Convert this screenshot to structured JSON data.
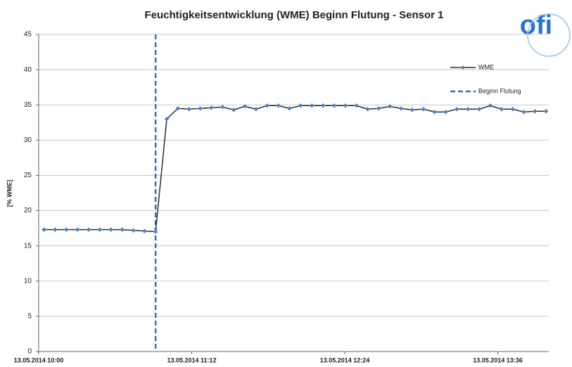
{
  "chart_data": {
    "type": "line",
    "title": "Feuchtigkeitsentwicklung (WME) Beginn Flutung - Sensor 1",
    "y_label": "[% WME]",
    "logo": "ofi",
    "x": [
      2.5,
      7.75,
      13,
      18.25,
      23.5,
      28.75,
      34,
      39.25,
      44.5,
      49.75,
      55,
      60.25,
      65.5,
      70.75,
      76,
      81.25,
      86.5,
      91.75,
      97,
      102.25,
      107.5,
      112.75,
      118,
      123.25,
      128.5,
      133.75,
      139,
      144.25,
      149.5,
      154.75,
      160,
      165.25,
      170.5,
      175.75,
      181,
      186.25,
      191.5,
      196.75,
      202,
      207.25,
      212.5,
      217.75,
      223,
      228.25,
      233.5,
      238.75
    ],
    "series": [
      {
        "name": "WME",
        "color": "#2b2b2b",
        "marker_color": "#4f81bd",
        "values": [
          17.3,
          17.3,
          17.3,
          17.3,
          17.3,
          17.3,
          17.3,
          17.3,
          17.2,
          17.1,
          17.0,
          33.0,
          34.5,
          34.4,
          34.5,
          34.6,
          34.7,
          34.3,
          34.8,
          34.4,
          34.9,
          34.9,
          34.5,
          34.9,
          34.9,
          34.9,
          34.9,
          34.9,
          34.9,
          34.4,
          34.5,
          34.8,
          34.5,
          34.3,
          34.4,
          34.0,
          34.0,
          34.4,
          34.4,
          34.4,
          34.9,
          34.4,
          34.4,
          34.0,
          34.1,
          34.1
        ]
      }
    ],
    "vlines": [
      {
        "name": "Beginn Flutung",
        "x": 55,
        "color": "#2e6fc9"
      }
    ],
    "xlim": [
      0,
      240
    ],
    "xticks": [
      {
        "value": 0,
        "label": "13.05.2014 10:00"
      },
      {
        "value": 72,
        "label": "13.05.2014 11:12"
      },
      {
        "value": 144,
        "label": "13.05.2014 12:24"
      },
      {
        "value": 216,
        "label": "13.05.2014 13:36"
      }
    ],
    "ylim": [
      0,
      45
    ],
    "yticks": [
      0,
      5,
      10,
      15,
      20,
      25,
      30,
      35,
      40,
      45
    ],
    "grid": true
  }
}
